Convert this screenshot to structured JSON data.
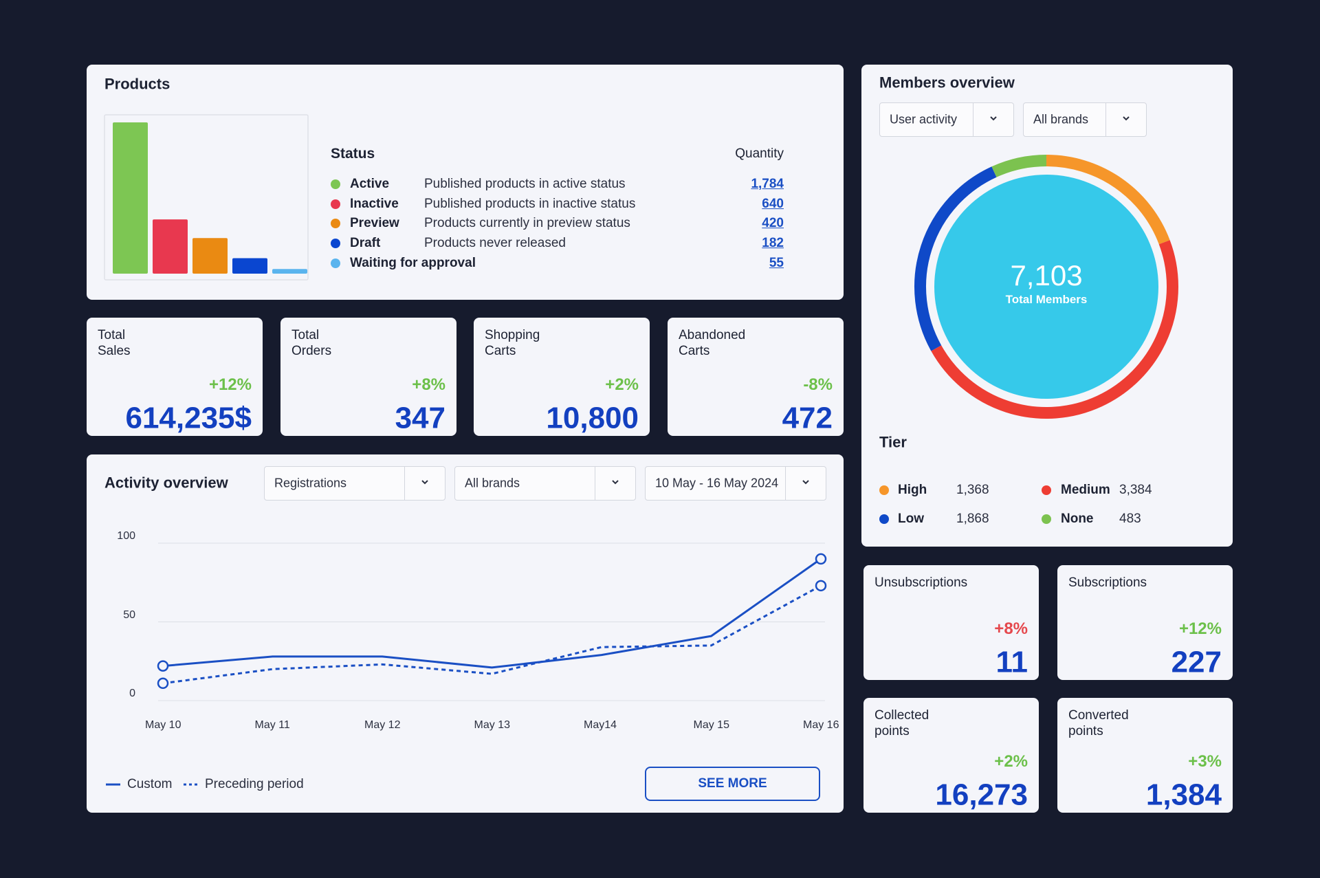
{
  "products": {
    "title": "Products",
    "status_header": "Status",
    "quantity_header": "Quantity",
    "chart": {
      "type": "bar",
      "categories": [
        "Active",
        "Inactive",
        "Preview",
        "Draft",
        "Waiting for approval"
      ],
      "descriptions": [
        "Published products in active status",
        "Published products in inactive status",
        "Products currently in preview status",
        "Products never released",
        null
      ],
      "values": [
        1784,
        640,
        420,
        182,
        55
      ],
      "value_labels": [
        "1,784",
        "640",
        "420",
        "182",
        "55"
      ],
      "colors": [
        "#7dc653",
        "#e8384f",
        "#ea8a12",
        "#0a46d0",
        "#5ab4ee"
      ]
    }
  },
  "kpis": [
    {
      "label": "Total Sales",
      "change": "+12%",
      "change_color": "#6cc04a",
      "value": "614,235$"
    },
    {
      "label": "Total Orders",
      "change": "+8%",
      "change_color": "#6cc04a",
      "value": "347"
    },
    {
      "label": "Shopping Carts",
      "change": "+2%",
      "change_color": "#6cc04a",
      "value": "10,800"
    },
    {
      "label": "Abandoned Carts",
      "change": "-8%",
      "change_color": "#6cc04a",
      "value": "472"
    }
  ],
  "activity": {
    "title": "Activity overview",
    "filters": [
      "Registrations",
      "All brands",
      "10 May - 16 May 2024"
    ],
    "chart": {
      "type": "line",
      "categories": [
        "May 10",
        "May 11",
        "May 12",
        "May 13",
        "May14",
        "May 15",
        "May 16"
      ],
      "ylim": [
        0,
        100
      ],
      "yticks": [
        0,
        50,
        100
      ],
      "grid": true,
      "series": [
        {
          "name": "Custom",
          "color": "#1a4fc4",
          "dashed": false,
          "values": [
            22,
            28,
            28,
            21,
            29,
            41,
            90
          ]
        },
        {
          "name": "Preceding period",
          "color": "#1a4fc4",
          "dashed": true,
          "values": [
            11,
            20,
            23,
            17,
            34,
            35,
            73
          ]
        }
      ]
    },
    "button": "SEE MORE"
  },
  "members": {
    "title": "Members overview",
    "filters": [
      "User activity",
      "All brands"
    ],
    "chart": {
      "type": "donut",
      "total_label": "7,103",
      "total_caption": "Total Members",
      "categories": [
        "High",
        "Medium",
        "Low",
        "None"
      ],
      "values": [
        1368,
        3384,
        1868,
        483
      ],
      "value_labels": [
        "1,368",
        "3,384",
        "1,868",
        "483"
      ],
      "colors": [
        "#f6962a",
        "#ee3d33",
        "#0f49c8",
        "#7cc24f"
      ],
      "center_color": "#36c9ea"
    },
    "tier_title": "Tier"
  },
  "stats": [
    {
      "label": "Unsubscriptions",
      "change": "+8%",
      "change_color": "#e5484d",
      "value": "11"
    },
    {
      "label": "Subscriptions",
      "change": "+12%",
      "change_color": "#6cc04a",
      "value": "227"
    },
    {
      "label": "Collected points",
      "change": "+2%",
      "change_color": "#6cc04a",
      "value": "16,273"
    },
    {
      "label": "Converted points",
      "change": "+3%",
      "change_color": "#6cc04a",
      "value": "1,384"
    }
  ]
}
